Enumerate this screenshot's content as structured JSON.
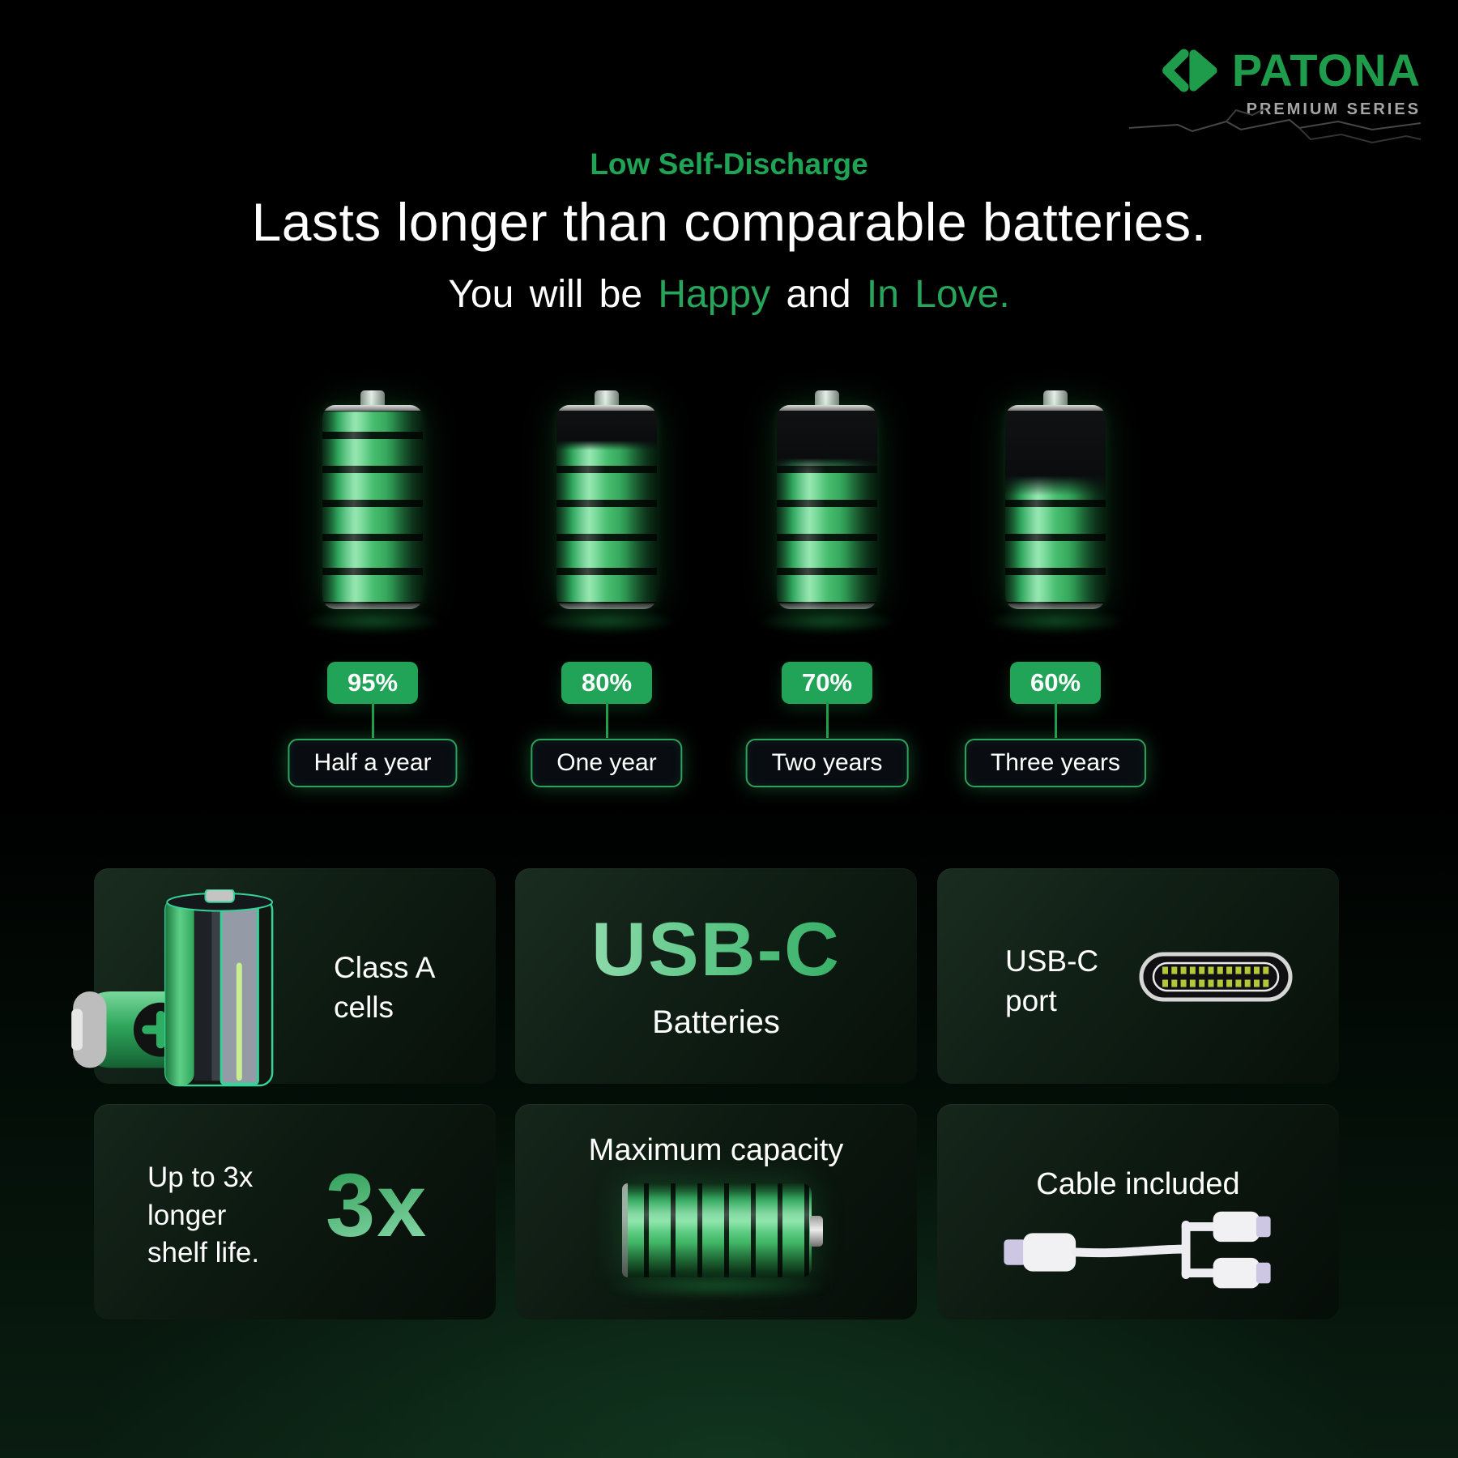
{
  "brand": {
    "name": "PATONA",
    "series": "PREMIUM SERIES"
  },
  "header": {
    "eyebrow": "Low Self-Discharge",
    "title": "Lasts longer than comparable batteries.",
    "subtitle": [
      {
        "text": "You will be "
      },
      {
        "text": "Happy",
        "accent": true
      },
      {
        "text": " and "
      },
      {
        "text": "In Love.",
        "accent": true
      }
    ]
  },
  "discharge": {
    "items": [
      {
        "percent": "95%",
        "fill": 95,
        "duration": "Half a year"
      },
      {
        "percent": "80%",
        "fill": 80,
        "duration": "One year"
      },
      {
        "percent": "70%",
        "fill": 70,
        "duration": "Two years"
      },
      {
        "percent": "60%",
        "fill": 60,
        "duration": "Three years"
      }
    ]
  },
  "features": {
    "class_a_cells": {
      "line1": "Class A",
      "line2": "cells"
    },
    "usb_c_batteries": {
      "title": "USB-C",
      "subtitle": "Batteries"
    },
    "usb_c_port": {
      "line1": "USB-C",
      "line2": "port"
    },
    "shelf_life": {
      "line1": "Up to 3x",
      "line2": "longer",
      "line3": "shelf life.",
      "big": "3x"
    },
    "maximum_capacity": {
      "title": "Maximum capacity"
    },
    "cable_included": {
      "title": "Cable included"
    }
  },
  "colors": {
    "brand_green": "#1e9c4b",
    "badge_green": "#21a457",
    "accent_green": "#27a55b",
    "mint": "#ace6c2"
  }
}
